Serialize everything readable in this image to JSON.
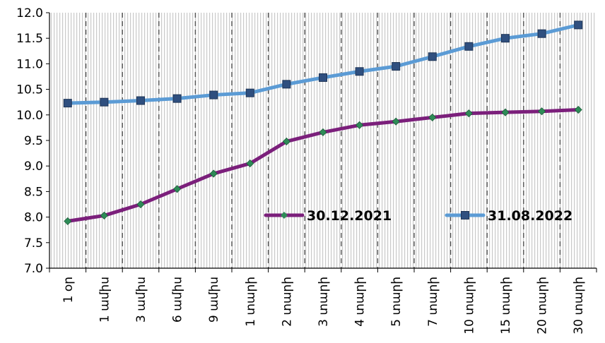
{
  "chart_data": {
    "type": "line",
    "title": "",
    "xlabel": "",
    "ylabel": "",
    "categories": [
      "1 օր",
      "1 ամիս",
      "3 ամիս",
      "6 ամիս",
      "9 ամիս",
      "1 տարի",
      "2 տարի",
      "3 տարի",
      "4 տարի",
      "5 տարի",
      "7 տարի",
      "10 տարի",
      "15 տարի",
      "20 տարի",
      "30 տարի"
    ],
    "ylim": [
      7.0,
      12.0
    ],
    "yticks": [
      "7.0",
      "7.5",
      "8.0",
      "8.5",
      "9.0",
      "9.5",
      "10.0",
      "10.5",
      "11.0",
      "11.5",
      "12.0"
    ],
    "grid": "vertical dashed lines between categories, hatched background",
    "legend_placement": "inside plot, lower right",
    "series": [
      {
        "name": "30.12.2021",
        "color": "#7b1f7b",
        "marker": "diamond",
        "marker_color": "#2e8b57",
        "values": [
          7.92,
          8.03,
          8.25,
          8.55,
          8.85,
          9.05,
          9.48,
          9.66,
          9.8,
          9.87,
          9.95,
          10.03,
          10.05,
          10.07,
          10.1
        ]
      },
      {
        "name": "31.08.2022",
        "color": "#5b9bd5",
        "marker": "square",
        "marker_color": "#2f4f7f",
        "values": [
          10.23,
          10.25,
          10.28,
          10.32,
          10.39,
          10.43,
          10.6,
          10.73,
          10.85,
          10.95,
          11.14,
          11.34,
          11.5,
          11.59,
          11.76
        ]
      }
    ]
  }
}
